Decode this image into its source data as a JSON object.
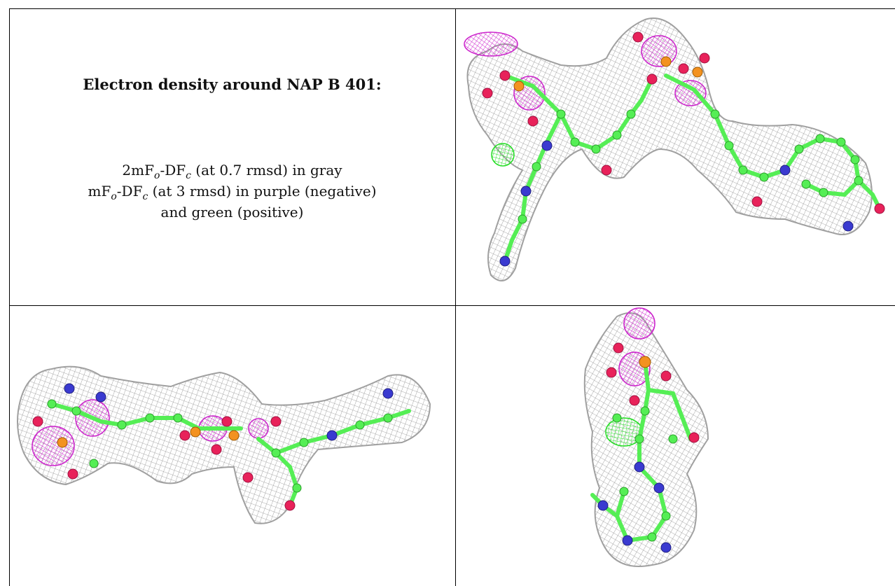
{
  "caption": {
    "title": "Electron density around NAP B 401:",
    "line1": {
      "prefix": "2mF",
      "sub_o": "o",
      "mid": "-DF",
      "sub_c": "c",
      "suffix": " (at 0.7 rmsd) in gray"
    },
    "line2": {
      "prefix": "mF",
      "sub_o": "o",
      "mid": "-DF",
      "sub_c": "c",
      "suffix": " (at 3 rmsd) in purple (negative)"
    },
    "line3": "and green (positive)"
  },
  "colors": {
    "density_2fofc": "#9a9a9a",
    "negative_density": "#cc22cc",
    "positive_density": "#22dd22",
    "carbon": "#55ee55",
    "oxygen": "#e8225a",
    "nitrogen": "#3a3ad0",
    "phosphorus": "#f39220"
  },
  "panels": [
    {
      "view": "top-right"
    },
    {
      "view": "bottom-left"
    },
    {
      "view": "bottom-right"
    }
  ]
}
